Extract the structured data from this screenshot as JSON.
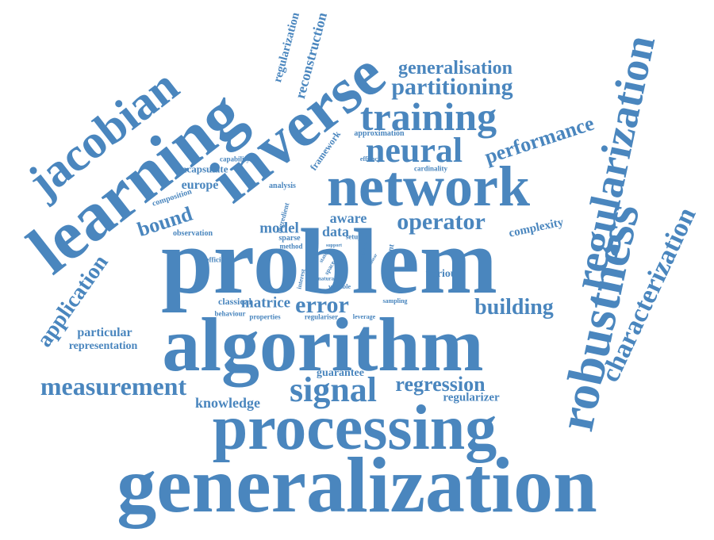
{
  "color": "#4a86be",
  "words": [
    "generalization",
    "problem",
    "algorithm",
    "processing",
    "network",
    "learning",
    "inverse",
    "robustness",
    "regularization",
    "jacobian",
    "training",
    "neural",
    "characterization",
    "signal",
    "measurement",
    "operator",
    "partitioning",
    "generalisation",
    "performance",
    "building",
    "error",
    "regression",
    "application",
    "bound",
    "knowledge",
    "particular",
    "representation",
    "reconstruction",
    "regularization",
    "europe",
    "encapsulate",
    "model",
    "data",
    "aware",
    "complexity",
    "matrice",
    "classical",
    "various",
    "guarantee",
    "regularizer",
    "framework",
    "approximation",
    "capability",
    "composition",
    "analysis",
    "observation",
    "efficient",
    "ingredient",
    "sparse",
    "method",
    "setup",
    "cardinality",
    "efficacy",
    "dependent",
    "offer",
    "support",
    "state",
    "space",
    "natural",
    "variable",
    "relevant",
    "interest",
    "sampling",
    "behaviour",
    "properties",
    "regulariser",
    "leverage",
    "hybrid",
    "linear"
  ]
}
